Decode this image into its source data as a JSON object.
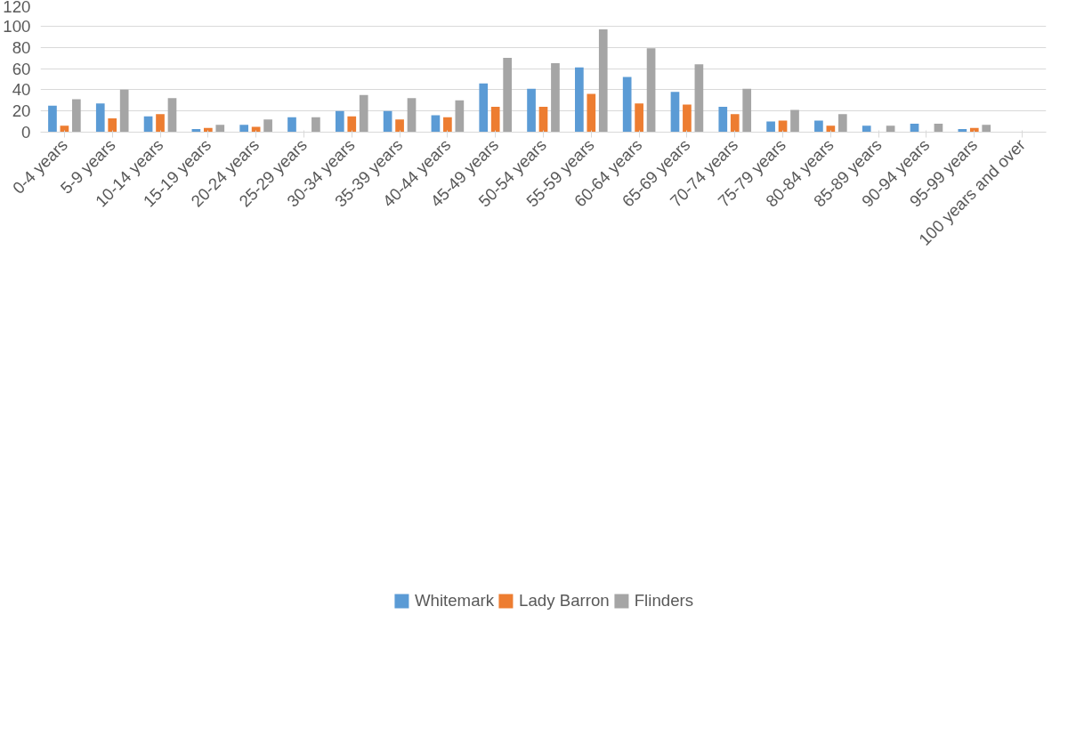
{
  "chart_data": {
    "type": "bar",
    "categories": [
      "0-4 years",
      "5-9 years",
      "10-14 years",
      "15-19 years",
      "20-24 years",
      "25-29 years",
      "30-34 years",
      "35-39 years",
      "40-44 years",
      "45-49 years",
      "50-54 years",
      "55-59 years",
      "60-64 years",
      "65-69 years",
      "70-74 years",
      "75-79 years",
      "80-84 years",
      "85-89 years",
      "90-94 years",
      "95-99 years",
      "100 years and over"
    ],
    "series": [
      {
        "name": "Whitemark",
        "color": "#5b9bd5",
        "values": [
          25,
          27,
          15,
          3,
          7,
          14,
          20,
          20,
          16,
          46,
          41,
          61,
          52,
          38,
          24,
          10,
          11,
          6,
          8,
          3,
          0
        ]
      },
      {
        "name": "Lady Barron",
        "color": "#ed7d31",
        "values": [
          6,
          13,
          17,
          4,
          5,
          0,
          15,
          12,
          14,
          24,
          24,
          36,
          27,
          26,
          17,
          11,
          6,
          0,
          0,
          4,
          0
        ]
      },
      {
        "name": "Flinders",
        "color": "#a5a5a5",
        "values": [
          31,
          40,
          32,
          7,
          12,
          14,
          35,
          32,
          30,
          70,
          65,
          97,
          79,
          64,
          41,
          21,
          17,
          6,
          8,
          7,
          0
        ]
      }
    ],
    "ylim": [
      0,
      120
    ],
    "yticks": [
      0,
      20,
      40,
      60,
      80,
      100,
      120
    ],
    "grid": "y",
    "legend": "bottom"
  }
}
